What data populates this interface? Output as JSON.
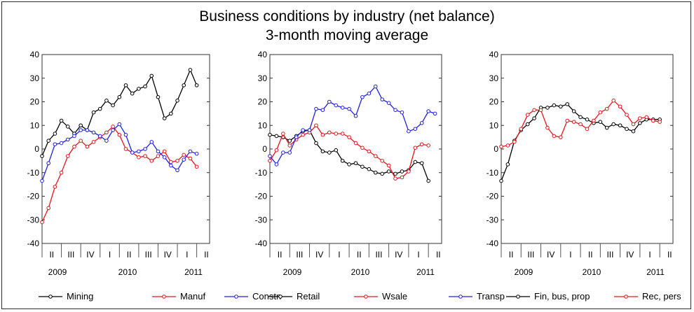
{
  "title": {
    "line1": "Business conditions by industry (net balance)",
    "line2": "3-month moving average"
  },
  "colors": {
    "black": "#000000",
    "red": "#e8141c",
    "blue": "#2020e0"
  },
  "chart_data": [
    {
      "type": "line",
      "ylim": [
        -40,
        40
      ],
      "yticks": [
        -40,
        -30,
        -20,
        -10,
        0,
        10,
        20,
        30,
        40
      ],
      "n_points": 27,
      "quarter_labels": [
        "II",
        "III",
        "IV",
        "I",
        "II",
        "III",
        "IV",
        "I",
        "II"
      ],
      "year_labels": [
        "2009",
        "2010",
        "2011"
      ],
      "series": [
        {
          "name": "Mining",
          "color": "#000000",
          "values": [
            -3,
            3.5,
            6.5,
            12,
            9.5,
            6.5,
            10,
            8,
            15.5,
            17,
            20.5,
            18.5,
            22,
            27,
            23.5,
            25.5,
            26.5,
            31,
            22,
            13,
            15,
            20.5,
            27,
            33.5,
            27
          ]
        },
        {
          "name": "Manuf",
          "color": "#e8141c",
          "values": [
            -31,
            -25,
            -16,
            -10,
            -3,
            1,
            3.5,
            1,
            3,
            5,
            7,
            9.5,
            6,
            0,
            -1.5,
            -3.5,
            -3,
            -5,
            -3,
            -1,
            -5.5,
            -5,
            -2.5,
            -4,
            -7.5
          ]
        },
        {
          "name": "Constn",
          "color": "#2020e0",
          "values": [
            -13.5,
            -6,
            2,
            2.5,
            4,
            5.5,
            8,
            8,
            7,
            5.5,
            3.5,
            8,
            10.5,
            6,
            -1.5,
            -1,
            0,
            3,
            -1,
            -3.5,
            -7,
            -9,
            -4.5,
            -1,
            -2
          ]
        }
      ]
    },
    {
      "type": "line",
      "ylim": [
        -40,
        40
      ],
      "yticks": [
        -40,
        -30,
        -20,
        -10,
        0,
        10,
        20,
        30,
        40
      ],
      "n_points": 27,
      "quarter_labels": [
        "II",
        "III",
        "IV",
        "I",
        "II",
        "III",
        "IV",
        "I",
        "II"
      ],
      "year_labels": [
        "2009",
        "2010",
        "2011"
      ],
      "series": [
        {
          "name": "Retail",
          "color": "#000000",
          "values": [
            6,
            5.5,
            5,
            3.5,
            5.5,
            7.5,
            8,
            2.5,
            -1,
            -1.5,
            -0.5,
            -5,
            -6.5,
            -6,
            -7.5,
            -8.5,
            -10,
            -10.5,
            -9.5,
            -10.5,
            -9.5,
            -9,
            -5.5,
            -6,
            -13.5
          ]
        },
        {
          "name": "Wsale",
          "color": "#e8141c",
          "values": [
            -5,
            -0.5,
            6.5,
            1.5,
            4,
            6,
            7,
            10,
            6,
            7,
            6.5,
            6.5,
            5,
            2.5,
            0.5,
            -1,
            -3,
            -5,
            -7,
            -12.5,
            -12,
            -9.5,
            0.5,
            2,
            1.5
          ]
        },
        {
          "name": "Transp",
          "color": "#2020e0",
          "values": [
            -3,
            -6.5,
            -1.5,
            -1.5,
            5,
            8,
            8,
            17,
            16.5,
            20,
            18.5,
            17.5,
            17,
            14,
            22,
            23.5,
            26.5,
            21,
            19.5,
            16.5,
            15.5,
            7.5,
            8.5,
            11,
            16,
            15
          ]
        }
      ]
    },
    {
      "type": "line",
      "ylim": [
        -40,
        40
      ],
      "yticks": [
        -40,
        -30,
        -20,
        -10,
        0,
        10,
        20,
        30,
        40
      ],
      "n_points": 27,
      "quarter_labels": [
        "II",
        "III",
        "IV",
        "I",
        "II",
        "III",
        "IV",
        "I",
        "II"
      ],
      "year_labels": [
        "2009",
        "2010",
        "2011"
      ],
      "series": [
        {
          "name": "Fin, bus, prop",
          "color": "#000000",
          "values": [
            -13.5,
            -6.5,
            3.5,
            8,
            10.5,
            13,
            17.5,
            17.5,
            18.5,
            18,
            19,
            16,
            13.5,
            12.5,
            11,
            11.5,
            9,
            10.5,
            10,
            8.5,
            7.5,
            11,
            12.5,
            12.5,
            12.5
          ]
        },
        {
          "name": "Rec, pers",
          "color": "#e8141c",
          "values": [
            1,
            1.5,
            3,
            8.5,
            14.5,
            16.5,
            16.5,
            9,
            5.5,
            5,
            12,
            11.5,
            10.5,
            8.5,
            12,
            15.5,
            17,
            20.5,
            18,
            14.5,
            10.5,
            13,
            13.5,
            12,
            11.5
          ]
        }
      ]
    }
  ]
}
